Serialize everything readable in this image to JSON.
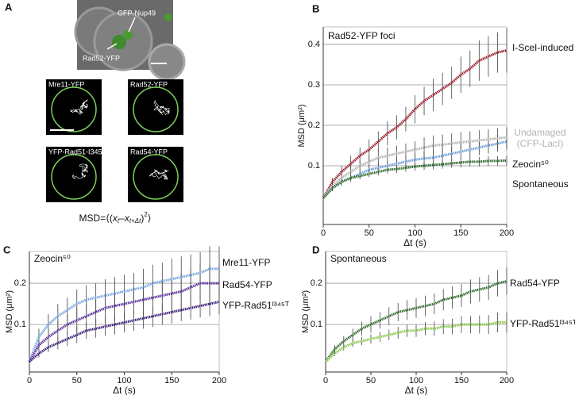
{
  "panel_a": {
    "panel": "A",
    "micrograph_labels": [
      "GFP-Nup49",
      "Rad52-YFP"
    ],
    "tracks": [
      "Mre11-YFP",
      "Rad52-YFP",
      "YFP-Rad51-I345T",
      "Rad54-YFP"
    ],
    "formula": [
      "MSD=⟨(",
      "x",
      "t",
      "–",
      "x",
      "t+Δt",
      ")",
      "2",
      "⟩"
    ]
  },
  "chart_data": [
    {
      "panel": "B",
      "type": "line",
      "title": "Rad52-YFP foci",
      "xlabel": "Δt (s)",
      "ylabel": "MSD (μm²)",
      "x": [
        0,
        10,
        20,
        30,
        40,
        50,
        60,
        70,
        80,
        90,
        100,
        110,
        120,
        130,
        140,
        150,
        160,
        170,
        180,
        190,
        200
      ],
      "xlim": [
        0,
        200
      ],
      "xticks": [
        0,
        50,
        100,
        150,
        200
      ],
      "ylim": [
        -0.045,
        0.443
      ],
      "yticks": [
        0.1,
        0.2,
        0.3,
        0.4
      ],
      "grid": true,
      "series": [
        {
          "name": "I-SceI-induced",
          "color": "#9b1b2a",
          "values": [
            0.02,
            0.06,
            0.085,
            0.105,
            0.125,
            0.14,
            0.16,
            0.18,
            0.195,
            0.215,
            0.24,
            0.26,
            0.275,
            0.29,
            0.305,
            0.325,
            0.34,
            0.36,
            0.37,
            0.38,
            0.385
          ],
          "errors": [
            0.005,
            0.01,
            0.015,
            0.02,
            0.02,
            0.025,
            0.025,
            0.03,
            0.03,
            0.03,
            0.035,
            0.035,
            0.04,
            0.04,
            0.04,
            0.045,
            0.045,
            0.05,
            0.05,
            0.05,
            0.055
          ]
        },
        {
          "name": "Undamaged (CFP-LacI)",
          "color": "#b4b4b4",
          "values": [
            0.02,
            0.05,
            0.07,
            0.085,
            0.1,
            0.11,
            0.12,
            0.125,
            0.13,
            0.135,
            0.14,
            0.145,
            0.15,
            0.152,
            0.155,
            0.158,
            0.16,
            0.163,
            0.165,
            0.168,
            0.17
          ],
          "errors": [
            0.005,
            0.01,
            0.01,
            0.015,
            0.015,
            0.015,
            0.02,
            0.02,
            0.02,
            0.02,
            0.02,
            0.025,
            0.025,
            0.025,
            0.025,
            0.025,
            0.025,
            0.025,
            0.025,
            0.025,
            0.025
          ]
        },
        {
          "name": "Zeocin⁵⁰",
          "color": "#6fa0dc",
          "values": [
            0.02,
            0.045,
            0.06,
            0.07,
            0.08,
            0.09,
            0.095,
            0.1,
            0.105,
            0.11,
            0.115,
            0.118,
            0.12,
            0.125,
            0.13,
            0.135,
            0.14,
            0.145,
            0.15,
            0.155,
            0.16
          ],
          "errors": [
            0.005,
            0.008,
            0.01,
            0.01,
            0.012,
            0.012,
            0.014,
            0.014,
            0.015,
            0.015,
            0.016,
            0.016,
            0.017,
            0.017,
            0.018,
            0.018,
            0.019,
            0.019,
            0.02,
            0.02,
            0.02
          ]
        },
        {
          "name": "Spontaneous",
          "color": "#2e6b2a",
          "values": [
            0.02,
            0.045,
            0.06,
            0.07,
            0.075,
            0.08,
            0.085,
            0.09,
            0.092,
            0.095,
            0.098,
            0.1,
            0.102,
            0.104,
            0.106,
            0.108,
            0.11,
            0.11,
            0.112,
            0.112,
            0.113
          ],
          "errors": [
            0.003,
            0.005,
            0.006,
            0.007,
            0.008,
            0.008,
            0.009,
            0.009,
            0.01,
            0.01,
            0.01,
            0.01,
            0.011,
            0.011,
            0.011,
            0.012,
            0.012,
            0.012,
            0.012,
            0.012,
            0.012
          ]
        }
      ]
    },
    {
      "panel": "C",
      "type": "line",
      "title": "Zeocin⁵⁰",
      "xlabel": "Δt (s)",
      "ylabel": "MSD (μm²)",
      "x": [
        0,
        10,
        20,
        30,
        40,
        50,
        60,
        70,
        80,
        90,
        100,
        110,
        120,
        130,
        140,
        150,
        160,
        170,
        180,
        190,
        200
      ],
      "xlim": [
        0,
        200
      ],
      "xticks": [
        0,
        50,
        100,
        150,
        200
      ],
      "ylim": [
        -0.015,
        0.277
      ],
      "yticks": [
        0.1,
        0.2
      ],
      "grid": true,
      "series": [
        {
          "name": "Mre11-YFP",
          "color": "#7aa6e0",
          "values": [
            0.01,
            0.07,
            0.1,
            0.12,
            0.135,
            0.15,
            0.16,
            0.165,
            0.17,
            0.175,
            0.18,
            0.185,
            0.19,
            0.2,
            0.205,
            0.21,
            0.215,
            0.22,
            0.225,
            0.235,
            0.235
          ],
          "errors": [
            0.005,
            0.02,
            0.025,
            0.03,
            0.03,
            0.035,
            0.035,
            0.035,
            0.04,
            0.04,
            0.04,
            0.04,
            0.045,
            0.045,
            0.045,
            0.05,
            0.05,
            0.05,
            0.05,
            0.055,
            0.055
          ]
        },
        {
          "name": "Rad54-YFP",
          "color": "#5a2d9c",
          "values": [
            0.01,
            0.05,
            0.07,
            0.085,
            0.1,
            0.11,
            0.12,
            0.13,
            0.14,
            0.145,
            0.15,
            0.155,
            0.16,
            0.165,
            0.17,
            0.175,
            0.18,
            0.19,
            0.2,
            0.2,
            0.2
          ],
          "errors": [
            0.005,
            0.015,
            0.02,
            0.025,
            0.025,
            0.03,
            0.03,
            0.03,
            0.035,
            0.035,
            0.035,
            0.035,
            0.04,
            0.04,
            0.04,
            0.04,
            0.045,
            0.045,
            0.045,
            0.045,
            0.045
          ]
        },
        {
          "name": "YFP-Rad51ᴵ³⁴⁵ᵀ",
          "color": "#3b1f7a",
          "values": [
            0.01,
            0.03,
            0.045,
            0.055,
            0.065,
            0.075,
            0.085,
            0.09,
            0.095,
            0.1,
            0.105,
            0.11,
            0.115,
            0.12,
            0.125,
            0.13,
            0.135,
            0.14,
            0.145,
            0.15,
            0.155
          ],
          "errors": [
            0.003,
            0.01,
            0.012,
            0.015,
            0.017,
            0.02,
            0.02,
            0.022,
            0.022,
            0.024,
            0.024,
            0.025,
            0.025,
            0.026,
            0.026,
            0.027,
            0.027,
            0.028,
            0.028,
            0.03,
            0.03
          ]
        }
      ]
    },
    {
      "panel": "D",
      "type": "line",
      "title": "Spontaneous",
      "xlabel": "Δt (s)",
      "ylabel": "MSD (μm²)",
      "x": [
        0,
        10,
        20,
        30,
        40,
        50,
        60,
        70,
        80,
        90,
        100,
        110,
        120,
        130,
        140,
        150,
        160,
        170,
        180,
        190,
        200
      ],
      "xlim": [
        0,
        200
      ],
      "xticks": [
        0,
        50,
        100,
        150,
        200
      ],
      "ylim": [
        -0.015,
        0.277
      ],
      "yticks": [
        0.1,
        0.2
      ],
      "grid": true,
      "series": [
        {
          "name": "Rad54-YFP",
          "color": "#2f6b2d",
          "values": [
            0.01,
            0.04,
            0.06,
            0.075,
            0.09,
            0.1,
            0.11,
            0.12,
            0.13,
            0.135,
            0.14,
            0.145,
            0.15,
            0.16,
            0.165,
            0.17,
            0.18,
            0.185,
            0.19,
            0.2,
            0.205
          ],
          "errors": [
            0.003,
            0.01,
            0.012,
            0.015,
            0.017,
            0.02,
            0.02,
            0.022,
            0.022,
            0.024,
            0.024,
            0.025,
            0.025,
            0.026,
            0.027,
            0.028,
            0.029,
            0.03,
            0.03,
            0.032,
            0.033
          ]
        },
        {
          "name": "YFP-Rad51ᴵ³⁴⁵ᵀ",
          "color": "#8cc850",
          "values": [
            0.01,
            0.03,
            0.045,
            0.055,
            0.06,
            0.065,
            0.07,
            0.075,
            0.08,
            0.085,
            0.085,
            0.09,
            0.09,
            0.095,
            0.095,
            0.1,
            0.1,
            0.1,
            0.1,
            0.105,
            0.105
          ],
          "errors": [
            0.003,
            0.006,
            0.008,
            0.009,
            0.01,
            0.011,
            0.012,
            0.013,
            0.014,
            0.015,
            0.015,
            0.016,
            0.017,
            0.018,
            0.019,
            0.02,
            0.021,
            0.022,
            0.023,
            0.024,
            0.025
          ]
        }
      ]
    }
  ]
}
